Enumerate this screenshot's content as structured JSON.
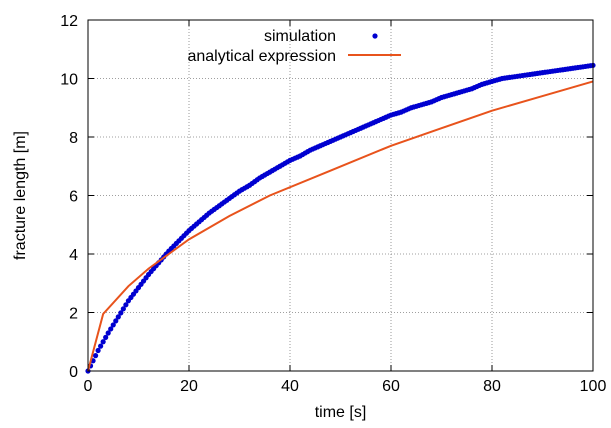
{
  "chart_data": {
    "type": "line",
    "xlabel": "time [s]",
    "ylabel": "fracture length [m]",
    "xlim": [
      0,
      100
    ],
    "ylim": [
      0,
      12
    ],
    "xticks": [
      "0",
      "20",
      "40",
      "60",
      "80",
      "100"
    ],
    "yticks": [
      "0",
      "2",
      "4",
      "6",
      "8",
      "10",
      "12"
    ],
    "grid": true,
    "legend_position": "top",
    "series": [
      {
        "name": "simulation",
        "style": "points",
        "color": "#0000d0",
        "x": [
          0,
          2,
          4,
          6,
          8,
          10,
          12,
          14,
          16,
          18,
          20,
          22,
          24,
          26,
          28,
          30,
          32,
          34,
          36,
          38,
          40,
          42,
          44,
          46,
          48,
          50,
          52,
          54,
          56,
          58,
          60,
          62,
          64,
          66,
          68,
          70,
          72,
          74,
          76,
          78,
          80,
          82,
          84,
          86,
          88,
          90,
          92,
          94,
          96,
          98,
          100
        ],
        "y": [
          0.0,
          0.7,
          1.3,
          1.85,
          2.4,
          2.85,
          3.3,
          3.7,
          4.1,
          4.45,
          4.8,
          5.1,
          5.4,
          5.65,
          5.9,
          6.15,
          6.35,
          6.6,
          6.8,
          7.0,
          7.2,
          7.35,
          7.55,
          7.7,
          7.85,
          8.0,
          8.15,
          8.3,
          8.45,
          8.6,
          8.75,
          8.85,
          9.0,
          9.1,
          9.2,
          9.35,
          9.45,
          9.55,
          9.65,
          9.8,
          9.9,
          10.0,
          10.05,
          10.1,
          10.15,
          10.2,
          10.25,
          10.3,
          10.35,
          10.4,
          10.45
        ]
      },
      {
        "name": "analytical expression",
        "style": "line",
        "color": "#e8531c",
        "x": [
          0,
          3,
          8,
          12,
          16,
          20,
          28,
          36,
          48,
          60,
          70,
          80,
          90,
          100
        ],
        "y": [
          0,
          1.95,
          2.9,
          3.5,
          4.0,
          4.5,
          5.3,
          6.0,
          6.85,
          7.7,
          8.3,
          8.9,
          9.4,
          9.9
        ]
      }
    ]
  }
}
